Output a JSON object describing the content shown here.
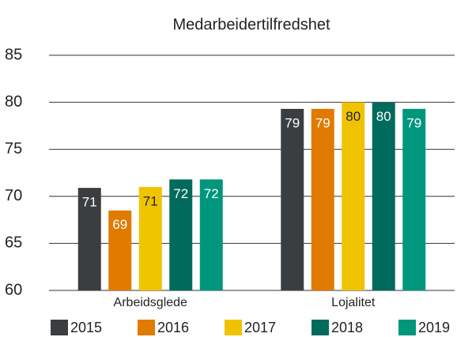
{
  "chart_data": {
    "type": "bar",
    "title": "Medarbeidertilfredshet",
    "categories": [
      "Arbeidsglede",
      "Lojalitet"
    ],
    "series": [
      {
        "name": "2015",
        "color": "#3b3e41",
        "values": [
          70.9,
          79.3
        ],
        "value_labels": [
          "71",
          "79"
        ]
      },
      {
        "name": "2016",
        "color": "#e07b00",
        "values": [
          68.5,
          79.3
        ],
        "value_labels": [
          "69",
          "79"
        ]
      },
      {
        "name": "2017",
        "color": "#f0c300",
        "values": [
          71.0,
          80.0
        ],
        "value_labels": [
          "71",
          "80"
        ]
      },
      {
        "name": "2018",
        "color": "#006b5c",
        "values": [
          71.8,
          80.0
        ],
        "value_labels": [
          "72",
          "80"
        ]
      },
      {
        "name": "2019",
        "color": "#00967d",
        "values": [
          71.8,
          79.3
        ],
        "value_labels": [
          "72",
          "79"
        ]
      }
    ],
    "ylim": [
      60,
      85
    ],
    "yticks": [
      60,
      65,
      70,
      75,
      80,
      85
    ],
    "grid": true,
    "legend": "bottom"
  }
}
